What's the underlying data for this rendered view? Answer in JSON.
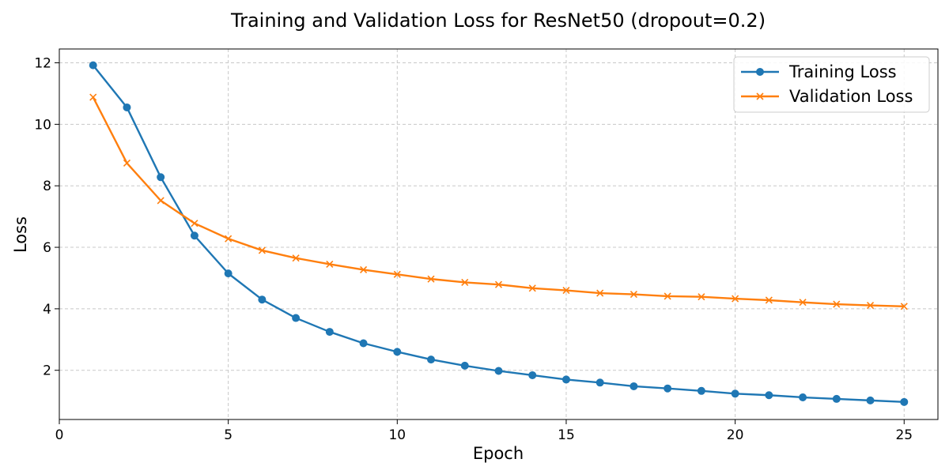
{
  "chart_data": {
    "type": "line",
    "title": "Training and Validation Loss for ResNet50 (dropout=0.2)",
    "xlabel": "Epoch",
    "ylabel": "Loss",
    "xlim": [
      0,
      26
    ],
    "ylim": [
      0.4,
      12.45
    ],
    "xticks": [
      0,
      5,
      10,
      15,
      20,
      25
    ],
    "yticks": [
      2,
      4,
      6,
      8,
      10,
      12
    ],
    "grid": true,
    "legend_position": "top-right",
    "x": [
      1,
      2,
      3,
      4,
      5,
      6,
      7,
      8,
      9,
      10,
      11,
      12,
      13,
      14,
      15,
      16,
      17,
      18,
      19,
      20,
      21,
      22,
      23,
      24,
      25
    ],
    "series": [
      {
        "name": "Training Loss",
        "color": "#1f77b4",
        "marker": "circle",
        "values": [
          11.92,
          10.55,
          8.28,
          6.38,
          5.15,
          4.3,
          3.7,
          3.25,
          2.88,
          2.6,
          2.35,
          2.15,
          1.98,
          1.84,
          1.7,
          1.6,
          1.48,
          1.41,
          1.33,
          1.24,
          1.19,
          1.12,
          1.07,
          1.02,
          0.97
        ]
      },
      {
        "name": "Validation Loss",
        "color": "#ff7f0e",
        "marker": "x",
        "values": [
          10.88,
          8.74,
          7.52,
          6.78,
          6.28,
          5.9,
          5.65,
          5.45,
          5.27,
          5.12,
          4.97,
          4.86,
          4.79,
          4.67,
          4.6,
          4.51,
          4.47,
          4.41,
          4.39,
          4.33,
          4.28,
          4.21,
          4.15,
          4.11,
          4.08
        ]
      }
    ]
  }
}
